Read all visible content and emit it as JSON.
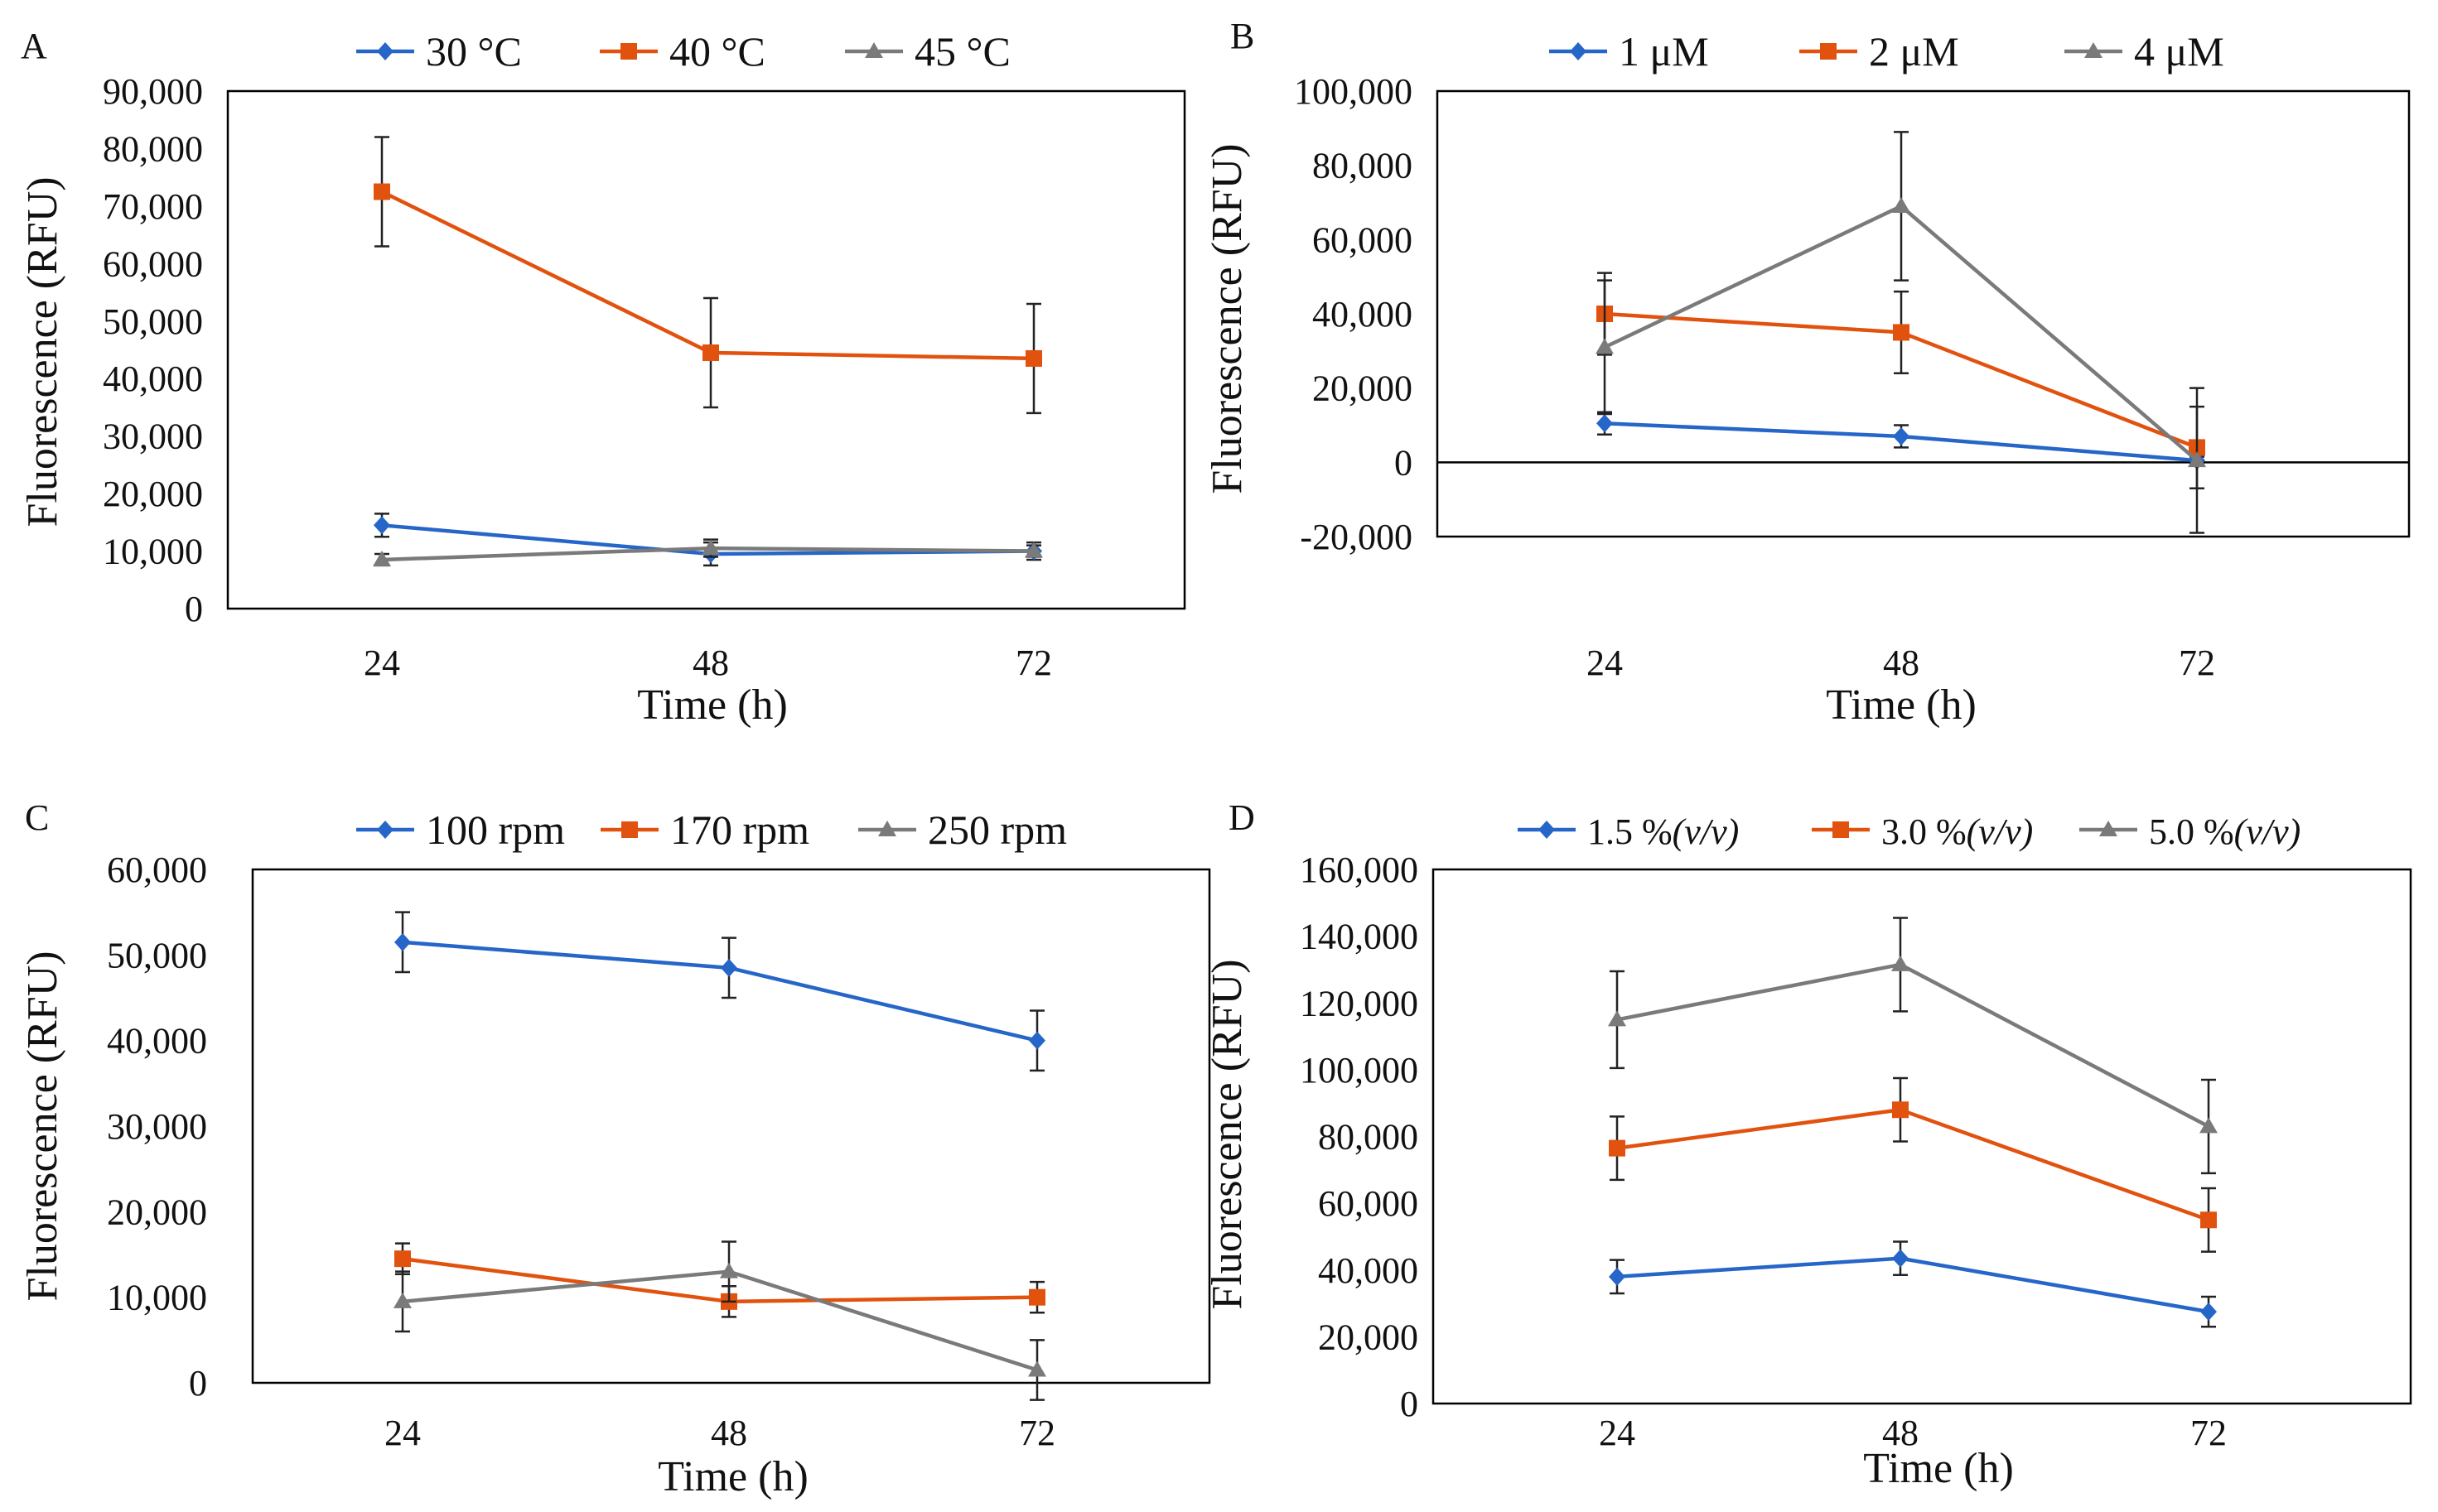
{
  "colors": {
    "s1": "#2566c8",
    "s2": "#e2520f",
    "s3": "#7a7a7a",
    "axis": "#000000"
  },
  "chart_data": [
    {
      "panel": "A",
      "type": "line",
      "xlabel": "Time (h)",
      "ylabel": "Fluorescence (RFU)",
      "x": [
        24,
        48,
        72
      ],
      "x_ticks": [
        "24",
        "48",
        "72"
      ],
      "ylim": [
        0,
        90000
      ],
      "y_ticks": [
        "0",
        "10,000",
        "20,000",
        "30,000",
        "40,000",
        "50,000",
        "60,000",
        "70,000",
        "80,000",
        "90,000"
      ],
      "series": [
        {
          "name": "30 °C",
          "marker": "diamond",
          "values": [
            14500,
            9500,
            10000
          ],
          "errors": [
            2000,
            2000,
            1500
          ]
        },
        {
          "name": "40 °C",
          "marker": "square",
          "values": [
            72500,
            44500,
            43500
          ],
          "errors": [
            9500,
            9500,
            9500
          ]
        },
        {
          "name": "45 °C",
          "marker": "triangle",
          "values": [
            8500,
            10500,
            10000
          ],
          "errors": [
            1000,
            1500,
            1000
          ]
        }
      ]
    },
    {
      "panel": "B",
      "type": "line",
      "xlabel": "Time (h)",
      "ylabel": "Fluorescence (RFU)",
      "x": [
        24,
        48,
        72
      ],
      "x_ticks": [
        "24",
        "48",
        "72"
      ],
      "ylim": [
        -20000,
        100000
      ],
      "y_ticks": [
        "-20,000",
        "0",
        "20,000",
        "40,000",
        "60,000",
        "80,000",
        "100,000"
      ],
      "series": [
        {
          "name": "1 μM",
          "marker": "diamond",
          "values": [
            10500,
            7000,
            500
          ],
          "errors": [
            3000,
            3000,
            1000
          ]
        },
        {
          "name": "2 μM",
          "marker": "square",
          "values": [
            40000,
            35000,
            4000
          ],
          "errors": [
            11000,
            11000,
            11000
          ]
        },
        {
          "name": "4 μM",
          "marker": "triangle",
          "values": [
            31000,
            69000,
            500
          ],
          "errors": [
            18000,
            20000,
            19500
          ]
        }
      ]
    },
    {
      "panel": "C",
      "type": "line",
      "xlabel": "Time (h)",
      "ylabel": "Fluorescence (RFU)",
      "x": [
        24,
        48,
        72
      ],
      "x_ticks": [
        "24",
        "48",
        "72"
      ],
      "ylim": [
        0,
        60000
      ],
      "y_ticks": [
        "0",
        "10,000",
        "20,000",
        "30,000",
        "40,000",
        "50,000",
        "60,000"
      ],
      "series": [
        {
          "name": "100 rpm",
          "marker": "diamond",
          "values": [
            51500,
            48500,
            40000
          ],
          "errors": [
            3500,
            3500,
            3500
          ]
        },
        {
          "name": "170 rpm",
          "marker": "square",
          "values": [
            14500,
            9500,
            10000
          ],
          "errors": [
            1800,
            1800,
            1800
          ]
        },
        {
          "name": "250 rpm",
          "marker": "triangle",
          "values": [
            9500,
            13000,
            1500
          ],
          "errors": [
            3500,
            3500,
            3500
          ]
        }
      ]
    },
    {
      "panel": "D",
      "type": "line",
      "xlabel": "Time (h)",
      "ylabel": "Fluorescence (RFU)",
      "x": [
        24,
        48,
        72
      ],
      "x_ticks": [
        "24",
        "48",
        "72"
      ],
      "ylim": [
        0,
        160000
      ],
      "y_ticks": [
        "0",
        "20,000",
        "40,000",
        "60,000",
        "80,000",
        "100,000",
        "120,000",
        "140,000",
        "160,000"
      ],
      "series": [
        {
          "name": "1.5 %",
          "marker": "diamond",
          "values": [
            38000,
            43500,
            27500
          ],
          "errors": [
            5000,
            5000,
            4500
          ]
        },
        {
          "name": "3.0 %",
          "marker": "square",
          "values": [
            76500,
            88000,
            55000
          ],
          "errors": [
            9500,
            9500,
            9500
          ]
        },
        {
          "name": "5.0 %",
          "marker": "triangle",
          "values": [
            115000,
            131500,
            83000
          ],
          "errors": [
            14500,
            14000,
            14000
          ]
        }
      ],
      "legend_suffix": "(v/v)"
    }
  ]
}
